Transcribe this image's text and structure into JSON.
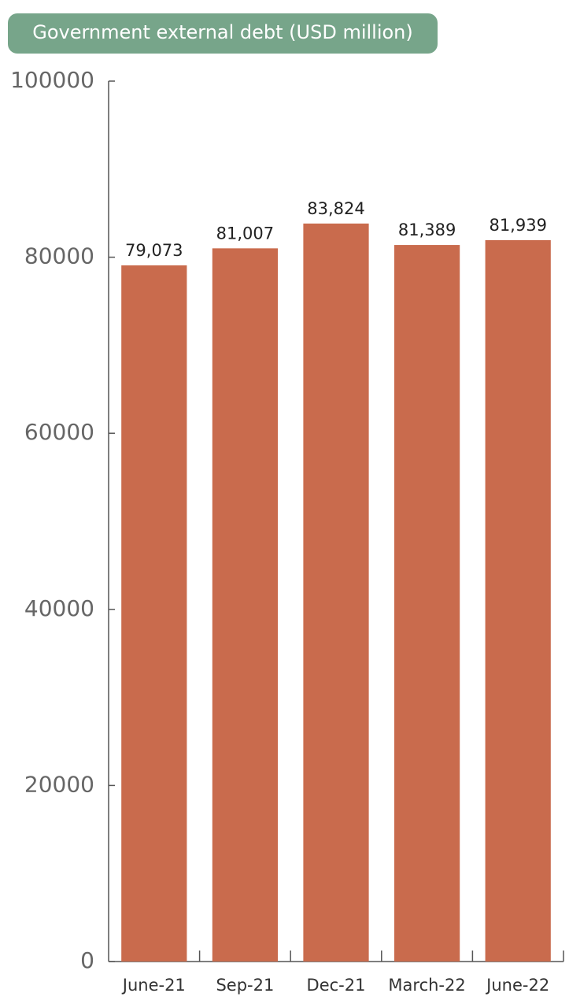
{
  "chart_data": {
    "type": "bar",
    "title": "Government external debt (USD million)",
    "categories": [
      "June-21",
      "Sep-21",
      "Dec-21",
      "March-22",
      "June-22"
    ],
    "values": [
      79073,
      81007,
      83824,
      81389,
      81939
    ],
    "value_labels": [
      "79,073",
      "81,007",
      "83,824",
      "81,389",
      "81,939"
    ],
    "color": "#c96b4d",
    "ylim": [
      0,
      100000
    ],
    "yticks": [
      0,
      20000,
      40000,
      60000,
      80000,
      100000
    ],
    "grid": false
  }
}
